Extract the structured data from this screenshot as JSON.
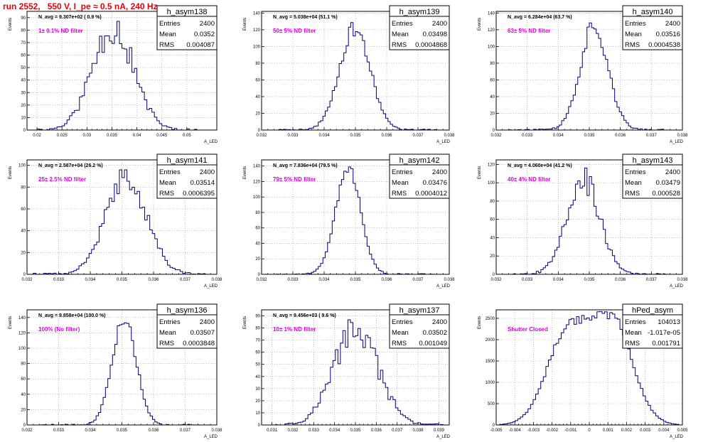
{
  "run_title": "run 2552,   550 V, I_pe ≈ 0.5 nA, 240 Hz",
  "colors": {
    "histogram": "#00007a",
    "title": "#e8000b",
    "annotation": "#e000e0",
    "grid": "#9a9a9a",
    "frame": "#000000"
  },
  "chart_data": [
    {
      "type": "histogram",
      "name": "h_asym138",
      "entries": "2400",
      "mean": "0.0352",
      "rms": "0.004087",
      "navg": "N_avg = 9.307e+02 ( 0.9 %)",
      "label": "1± 0.1% ND filter",
      "ylabel": "Events",
      "xlabel": "A_LED",
      "xlim": [
        0.018,
        0.056
      ],
      "ylim": [
        0,
        95
      ],
      "xticks": [
        "0.02",
        "0.025",
        "0.03",
        "0.035",
        "0.04",
        "0.045",
        "0.05"
      ],
      "xtick_values": [
        0.02,
        0.025,
        0.03,
        0.035,
        0.04,
        0.045,
        0.05
      ],
      "yticks": [
        0,
        10,
        20,
        30,
        40,
        50,
        60,
        70,
        80,
        90
      ],
      "profile": {
        "kind": "gauss",
        "mu": 0.0352,
        "sigma": 0.0041,
        "peak": 83,
        "noise": 0.18,
        "seed": 11,
        "lo": 0.019,
        "hi": 0.054
      }
    },
    {
      "type": "histogram",
      "name": "h_asym139",
      "entries": "2400",
      "mean": "0.03498",
      "rms": "0.0004868",
      "navg": "N_avg = 5.038e+04 (51.1 %)",
      "label": "50± 5% ND filter",
      "ylabel": "Events",
      "xlabel": "A_LED",
      "xlim": [
        0.032,
        0.038
      ],
      "ylim": [
        0,
        142
      ],
      "xticks": [
        "0.032",
        "0.033",
        "0.034",
        "0.035",
        "0.036",
        "0.037",
        "0.038"
      ],
      "xtick_values": [
        0.032,
        0.033,
        0.034,
        0.035,
        0.036,
        0.037,
        0.038
      ],
      "yticks": [
        0,
        20,
        40,
        60,
        80,
        100,
        120,
        140
      ],
      "profile": {
        "kind": "gauss",
        "mu": 0.03498,
        "sigma": 0.00049,
        "peak": 122,
        "noise": 0.08,
        "seed": 23,
        "lo": 0.0324,
        "hi": 0.0376
      }
    },
    {
      "type": "histogram",
      "name": "h_asym140",
      "entries": "2400",
      "mean": "0.03516",
      "rms": "0.0004538",
      "navg": "N_avg = 6.284e+04 (63.7 %)",
      "label": "63± 5% ND filter",
      "ylabel": "Events",
      "xlabel": "A_LED",
      "xlim": [
        0.032,
        0.038
      ],
      "ylim": [
        0,
        142
      ],
      "xticks": [
        "0.032",
        "0.033",
        "0.034",
        "0.035",
        "0.036",
        "0.037",
        "0.038"
      ],
      "xtick_values": [
        0.032,
        0.033,
        0.034,
        0.035,
        0.036,
        0.037,
        0.038
      ],
      "yticks": [
        0,
        20,
        40,
        60,
        80,
        100,
        120,
        140
      ],
      "profile": {
        "kind": "gauss",
        "mu": 0.03516,
        "sigma": 0.00045,
        "peak": 126,
        "noise": 0.1,
        "seed": 37,
        "lo": 0.0324,
        "hi": 0.0376
      }
    },
    {
      "type": "histogram",
      "name": "h_asym141",
      "entries": "2400",
      "mean": "0.03514",
      "rms": "0.0006395",
      "navg": "N_avg = 2.587e+04 (26.2 %)",
      "label": "25± 2.5% ND filter",
      "ylabel": "Events",
      "xlabel": "A_LED",
      "xlim": [
        0.032,
        0.038
      ],
      "ylim": [
        0,
        105
      ],
      "xticks": [
        "0.032",
        "0.033",
        "0.034",
        "0.035",
        "0.036",
        "0.037",
        "0.038"
      ],
      "xtick_values": [
        0.032,
        0.033,
        0.034,
        0.035,
        0.036,
        0.037,
        0.038
      ],
      "yticks": [
        0,
        20,
        40,
        60,
        80,
        100
      ],
      "profile": {
        "kind": "gauss",
        "mu": 0.03514,
        "sigma": 0.00064,
        "peak": 90,
        "noise": 0.12,
        "seed": 41,
        "lo": 0.0322,
        "hi": 0.0378
      }
    },
    {
      "type": "histogram",
      "name": "h_asym142",
      "entries": "2400",
      "mean": "0.03476",
      "rms": "0.0004012",
      "navg": "N_avg = 7.836e+04 (79.5 %)",
      "label": "79± 5% ND filter",
      "ylabel": "Events",
      "xlabel": "A_LED",
      "xlim": [
        0.032,
        0.038
      ],
      "ylim": [
        0,
        148
      ],
      "xticks": [
        "0.032",
        "0.033",
        "0.034",
        "0.035",
        "0.036",
        "0.037",
        "0.038"
      ],
      "xtick_values": [
        0.032,
        0.033,
        0.034,
        0.035,
        0.036,
        0.037,
        0.038
      ],
      "yticks": [
        0,
        20,
        40,
        60,
        80,
        100,
        120,
        140
      ],
      "profile": {
        "kind": "gauss",
        "mu": 0.03476,
        "sigma": 0.0004,
        "peak": 138,
        "noise": 0.06,
        "seed": 53,
        "lo": 0.0324,
        "hi": 0.0376
      }
    },
    {
      "type": "histogram",
      "name": "h_asym143",
      "entries": "2400",
      "mean": "0.03479",
      "rms": "0.000528",
      "navg": "N_avg = 4.060e+04 (41.2 %)",
      "label": "40± 4% ND filter",
      "ylabel": "Events",
      "xlabel": "A_LED",
      "xlim": [
        0.032,
        0.038
      ],
      "ylim": [
        0,
        125
      ],
      "xticks": [
        "0.032",
        "0.033",
        "0.034",
        "0.035",
        "0.036",
        "0.037",
        "0.038"
      ],
      "xtick_values": [
        0.032,
        0.033,
        0.034,
        0.035,
        0.036,
        0.037,
        0.038
      ],
      "yticks": [
        0,
        20,
        40,
        60,
        80,
        100,
        120
      ],
      "profile": {
        "kind": "gauss",
        "mu": 0.03479,
        "sigma": 0.00053,
        "peak": 105,
        "noise": 0.14,
        "seed": 67,
        "lo": 0.0324,
        "hi": 0.0376
      }
    },
    {
      "type": "histogram",
      "name": "h_asym136",
      "entries": "2400",
      "mean": "0.03507",
      "rms": "0.0003848",
      "navg": "N_avg = 9.858e+04 (100.0 %)",
      "label": "100% (No filter)",
      "ylabel": "Events",
      "xlabel": "A_LED",
      "xlim": [
        0.032,
        0.038
      ],
      "ylim": [
        0,
        150
      ],
      "xticks": [
        "0.032",
        "0.033",
        "0.034",
        "0.035",
        "0.036",
        "0.037",
        "0.038"
      ],
      "xtick_values": [
        0.032,
        0.033,
        0.034,
        0.035,
        0.036,
        0.037,
        0.038
      ],
      "yticks": [
        0,
        20,
        40,
        60,
        80,
        100,
        120,
        140
      ],
      "profile": {
        "kind": "gauss",
        "mu": 0.03507,
        "sigma": 0.00038,
        "peak": 140,
        "noise": 0.07,
        "seed": 79,
        "lo": 0.0324,
        "hi": 0.0376
      }
    },
    {
      "type": "histogram",
      "name": "h_asym137",
      "entries": "2400",
      "mean": "0.03502",
      "rms": "0.001049",
      "navg": "N_avg = 9.456e+03 ( 9.6 %)",
      "label": "10± 1% ND filter",
      "ylabel": "Events",
      "xlabel": "A_LED",
      "xlim": [
        0.0305,
        0.0395
      ],
      "ylim": [
        0,
        95
      ],
      "xticks": [
        "0.031",
        "0.032",
        "0.033",
        "0.034",
        "0.035",
        "0.036",
        "0.037",
        "0.038",
        "0.039"
      ],
      "xtick_values": [
        0.031,
        0.032,
        0.033,
        0.034,
        0.035,
        0.036,
        0.037,
        0.038,
        0.039
      ],
      "yticks": [
        0,
        10,
        20,
        30,
        40,
        50,
        60,
        70,
        80,
        90
      ],
      "profile": {
        "kind": "gauss",
        "mu": 0.03502,
        "sigma": 0.00105,
        "peak": 80,
        "noise": 0.16,
        "seed": 97,
        "lo": 0.0308,
        "hi": 0.0392
      }
    },
    {
      "type": "histogram",
      "name": "hPed_asym",
      "entries": "104013",
      "mean": "-1.017e-05",
      "rms": "0.001791",
      "navg": "",
      "label": "Shutter Closed",
      "ylabel": "Events",
      "xlabel": "A_LED",
      "xlim": [
        -0.005,
        0.005
      ],
      "ylim": [
        0,
        2700
      ],
      "xticks": [
        "-0.005",
        "-0.004",
        "-0.003",
        "-0.002",
        "-0.001",
        "0",
        "0.001",
        "0.002",
        "0.003",
        "0.004",
        "0.005"
      ],
      "xtick_values": [
        -0.005,
        -0.004,
        -0.003,
        -0.002,
        -0.001,
        0,
        0.001,
        0.002,
        0.003,
        0.004,
        0.005
      ],
      "yticks": [
        0,
        500,
        1000,
        1500,
        2000,
        2500
      ],
      "profile": {
        "kind": "bimodal",
        "mu1": -0.0012,
        "mu2": 0.0012,
        "sigma": 0.0011,
        "peak": 2450,
        "noise": 0.04,
        "seed": 131,
        "lo": -0.0048,
        "hi": 0.0048
      }
    }
  ]
}
